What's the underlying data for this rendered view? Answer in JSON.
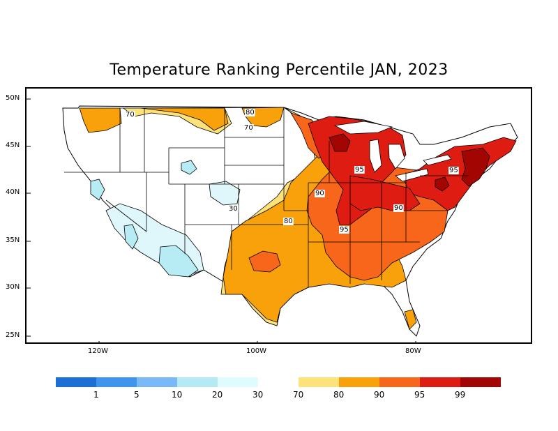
{
  "title": "Temperature Ranking Percentile JAN, 2023",
  "axes": {
    "lat_labels": [
      "50N",
      "45N",
      "40N",
      "35N",
      "30N",
      "25N"
    ],
    "lon_labels": [
      "120W",
      "100W",
      "80W"
    ]
  },
  "contour_labels": [
    "70",
    "80",
    "70",
    "95",
    "90",
    "80",
    "30",
    "90",
    "95",
    "95"
  ],
  "legend": {
    "cool_colors": [
      "#1c6fd4",
      "#3f95ee",
      "#7ab9f7",
      "#b5e9f4",
      "#e0fbfd"
    ],
    "warm_colors": [
      "#fde27a",
      "#f8a10b",
      "#f7661a",
      "#df1c12",
      "#a20502"
    ],
    "cool_labels": [
      "1",
      "5",
      "10",
      "20",
      "30"
    ],
    "warm_labels": [
      "70",
      "80",
      "90",
      "95",
      "99"
    ]
  },
  "fill_colors": {
    "light_blue": "#b8ecf4",
    "pale_blue": "#dff7fb",
    "yellow": "#fde27a",
    "orange": "#f8a10b",
    "dark_orange": "#f7661a",
    "red": "#df1c12",
    "dark_red": "#a20502"
  }
}
